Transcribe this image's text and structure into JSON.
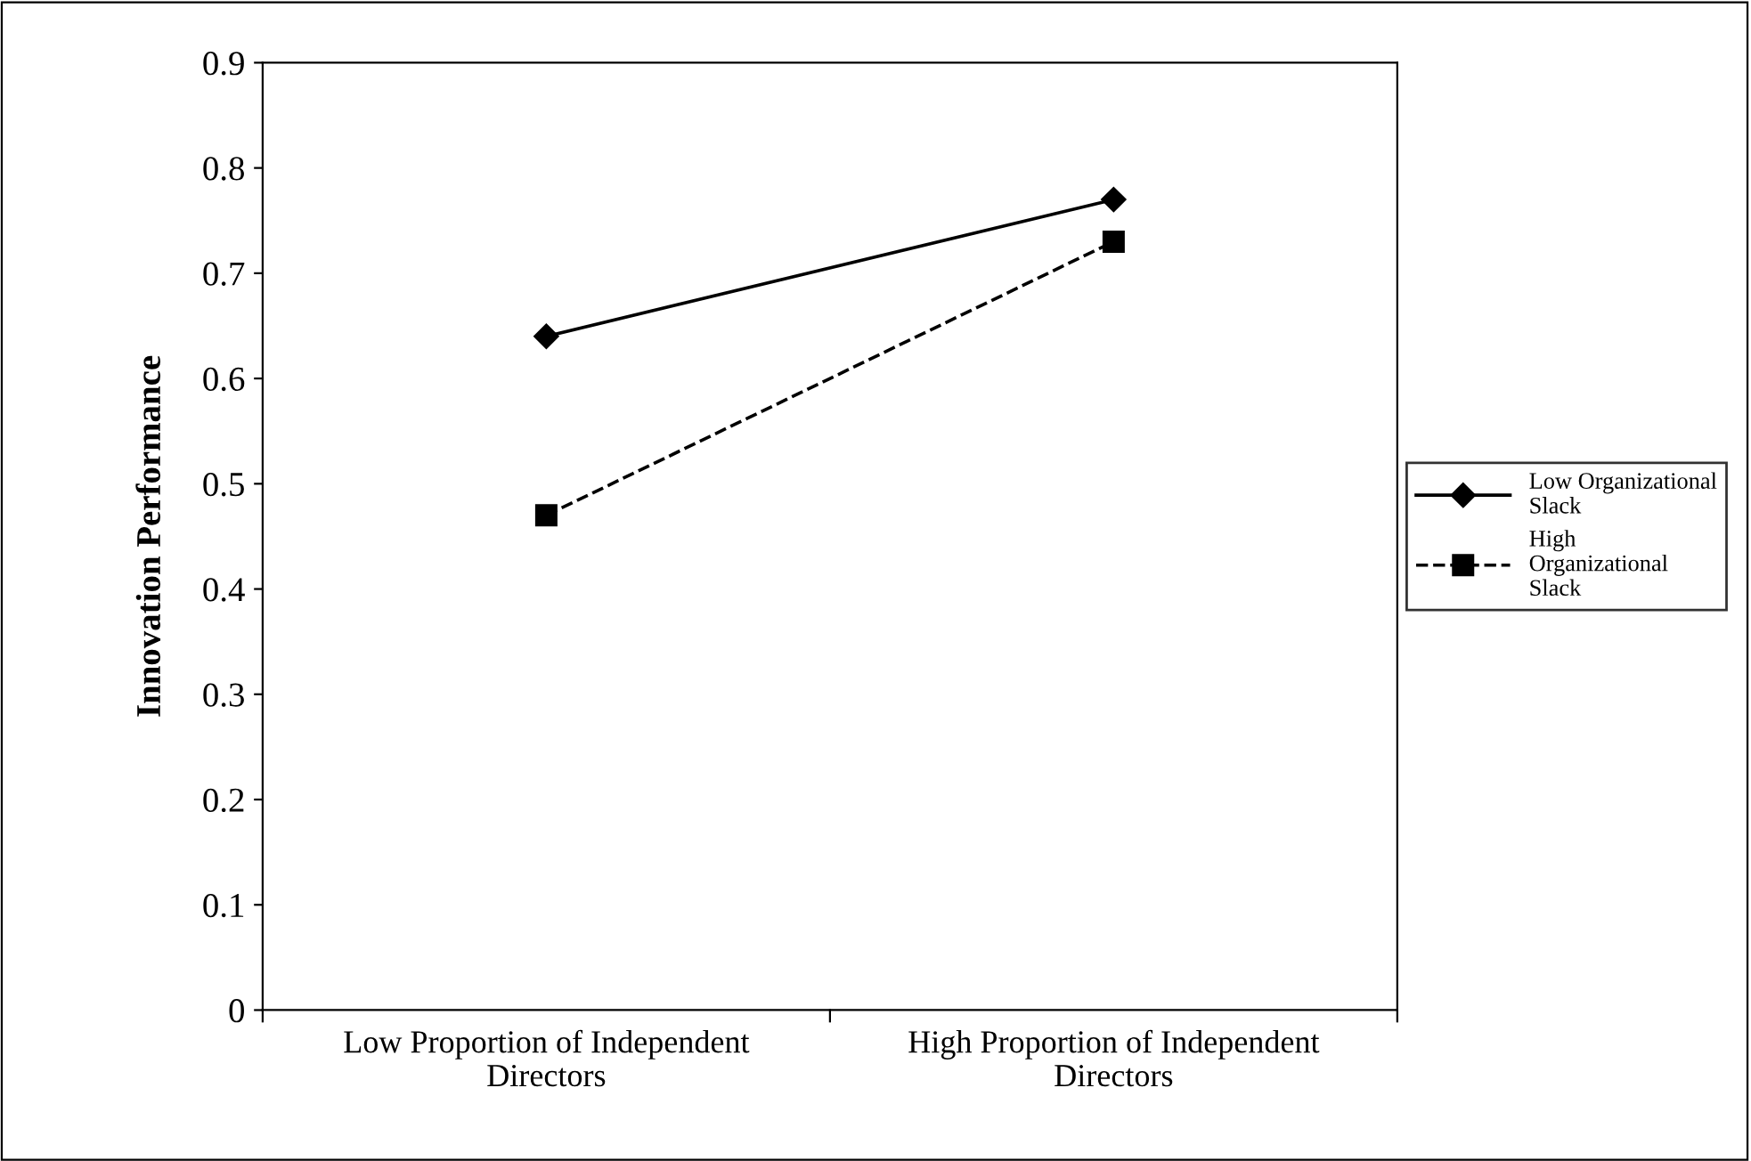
{
  "chart_data": {
    "type": "line",
    "ylabel": "Innovation Performance",
    "categories": [
      "Low Proportion of Independent Directors",
      "High Proportion of Independent Directors"
    ],
    "series": [
      {
        "name": "Low Organizational Slack",
        "color": "#000000",
        "values": [
          0.64,
          0.77
        ],
        "marker": "diamond",
        "line_style": "solid"
      },
      {
        "name": "High Organizational Slack",
        "color": "#000000",
        "values": [
          0.47,
          0.73
        ],
        "marker": "square",
        "line_style": "dashed"
      }
    ],
    "ylim": [
      0,
      0.9
    ],
    "yticks": [
      0,
      0.1,
      0.2,
      0.3,
      0.4,
      0.5,
      0.6,
      0.7,
      0.8,
      0.9
    ],
    "grid": false,
    "legend": "right"
  }
}
